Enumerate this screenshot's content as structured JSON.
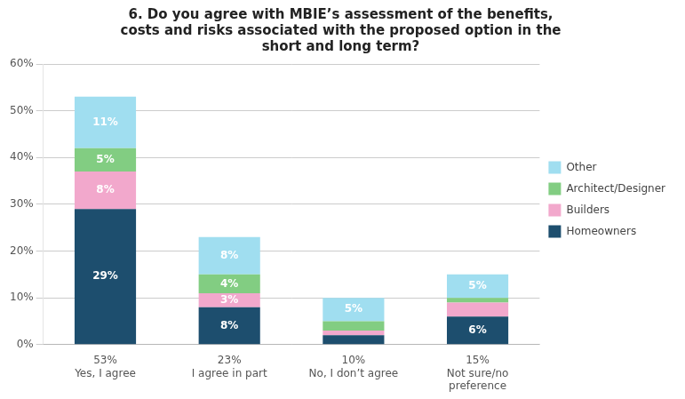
{
  "chart_data": {
    "type": "bar",
    "stacked": true,
    "title": "6. Do you agree with MBIE’s assessment of the benefits,\ncosts and risks associated with the proposed option in the\nshort and long term?",
    "categories": [
      "Yes, I agree",
      "I agree in part",
      "No, I don’t agree",
      "Not sure/no\npreference"
    ],
    "series": [
      {
        "name": "Homeowners",
        "color": "#1d4e6e",
        "values": [
          29,
          8,
          2,
          6
        ],
        "value_labels": [
          "29%",
          "8%",
          null,
          "6%"
        ]
      },
      {
        "name": "Builders",
        "color": "#f2a8cc",
        "values": [
          8,
          3,
          1,
          3
        ],
        "value_labels": [
          "8%",
          "3%",
          null,
          null
        ]
      },
      {
        "name": "Architect/Designer",
        "color": "#82cd82",
        "values": [
          5,
          4,
          2,
          1
        ],
        "value_labels": [
          "5%",
          "4%",
          null,
          null
        ]
      },
      {
        "name": "Other",
        "color": "#a0def0",
        "values": [
          11,
          8,
          5,
          5
        ],
        "value_labels": [
          "11%",
          "8%",
          "5%",
          "5%"
        ]
      }
    ],
    "totals": [
      53,
      23,
      10,
      15
    ],
    "total_labels": [
      "53%",
      "23%",
      "10%",
      "15%"
    ],
    "ylim": [
      0,
      60
    ],
    "yticks": [
      {
        "value": 0,
        "label": "0%"
      },
      {
        "value": 10,
        "label": "10%"
      },
      {
        "value": 20,
        "label": "20%"
      },
      {
        "value": 30,
        "label": "30%"
      },
      {
        "value": 40,
        "label": "40%"
      },
      {
        "value": 50,
        "label": "50%"
      },
      {
        "value": 60,
        "label": "60%"
      }
    ],
    "grid": "y",
    "legend": "right",
    "data_labels": true
  }
}
